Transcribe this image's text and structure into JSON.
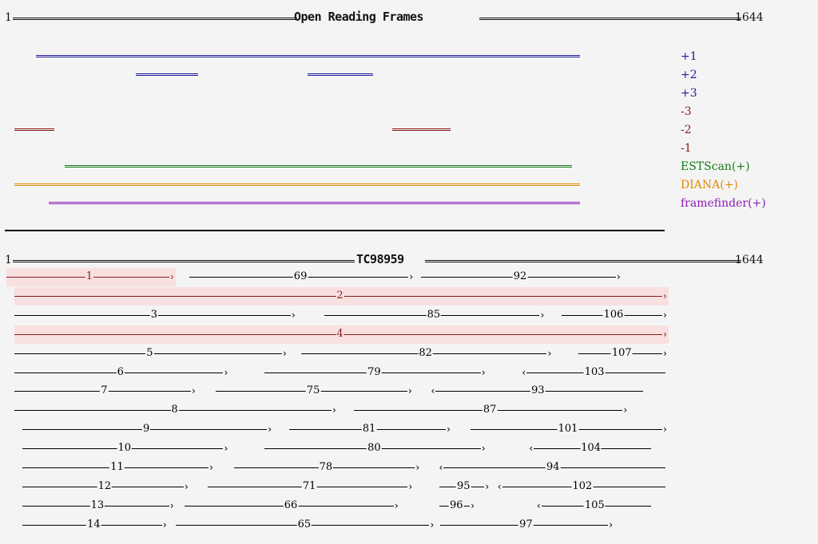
{
  "orf_header": {
    "start": "1",
    "title": "Open Reading Frames",
    "end": "1644"
  },
  "legend": [
    {
      "label": "+1",
      "color": "#1a1a9c"
    },
    {
      "label": "+2",
      "color": "#1a1a9c"
    },
    {
      "label": "+3",
      "color": "#1a1a9c"
    },
    {
      "label": "-3",
      "color": "#8b1a1a"
    },
    {
      "label": "-2",
      "color": "#8b1a1a"
    },
    {
      "label": "-1",
      "color": "#8b1a1a"
    },
    {
      "label": "ESTScan(+)",
      "color": "#137a13"
    },
    {
      "label": "DIANA(+)",
      "color": "#e08a00"
    },
    {
      "label": "framefinder(+)",
      "color": "#8a1ab5"
    }
  ],
  "orfs": [
    {
      "track": "+1",
      "start": 74,
      "end": 1430
    },
    {
      "track": "+2",
      "start": 322,
      "end": 478
    },
    {
      "track": "+2",
      "start": 751,
      "end": 914
    },
    {
      "track": "-2",
      "start": 20,
      "end": 119
    },
    {
      "track": "-2",
      "start": 962,
      "end": 1108
    },
    {
      "track": "ESTScan(+)",
      "start": 146,
      "end": 1410
    },
    {
      "track": "DIANA(+)",
      "start": 20,
      "end": 1430
    },
    {
      "track": "framefinder(+)",
      "start": 106,
      "end": 1430
    }
  ],
  "tc_header": {
    "start": "1",
    "title": "TC98959",
    "end": "1644"
  },
  "alignments": [
    {
      "label": "1",
      "start": 0,
      "end": 414,
      "dir": "fwd",
      "highlight": true
    },
    {
      "label": "69",
      "start": 456,
      "end": 1011,
      "dir": "fwd"
    },
    {
      "label": "92",
      "start": 1035,
      "end": 1528,
      "dir": "fwd"
    },
    {
      "label": "2",
      "start": 20,
      "end": 1644,
      "dir": "fwd",
      "highlight": true
    },
    {
      "label": "3",
      "start": 20,
      "end": 717,
      "dir": "fwd"
    },
    {
      "label": "85",
      "start": 794,
      "end": 1338,
      "dir": "fwd"
    },
    {
      "label": "106",
      "start": 1385,
      "end": 1644,
      "dir": "fwd"
    },
    {
      "label": "4",
      "start": 20,
      "end": 1644,
      "dir": "fwd",
      "highlight": true
    },
    {
      "label": "5",
      "start": 20,
      "end": 695,
      "dir": "fwd"
    },
    {
      "label": "82",
      "start": 735,
      "end": 1356,
      "dir": "fwd"
    },
    {
      "label": "107",
      "start": 1426,
      "end": 1644,
      "dir": "fwd"
    },
    {
      "label": "6",
      "start": 20,
      "end": 549,
      "dir": "fwd"
    },
    {
      "label": "79",
      "start": 644,
      "end": 1191,
      "dir": "fwd"
    },
    {
      "label": "103",
      "start": 1290,
      "end": 1644,
      "dir": "rev"
    },
    {
      "label": "7",
      "start": 20,
      "end": 468,
      "dir": "fwd"
    },
    {
      "label": "75",
      "start": 523,
      "end": 1008,
      "dir": "fwd"
    },
    {
      "label": "93",
      "start": 1063,
      "end": 1589,
      "dir": "rev"
    },
    {
      "label": "8",
      "start": 20,
      "end": 819,
      "dir": "fwd"
    },
    {
      "label": "87",
      "start": 867,
      "end": 1545,
      "dir": "fwd"
    },
    {
      "label": "9",
      "start": 40,
      "end": 658,
      "dir": "fwd"
    },
    {
      "label": "81",
      "start": 706,
      "end": 1104,
      "dir": "fwd"
    },
    {
      "label": "101",
      "start": 1158,
      "end": 1644,
      "dir": "fwd"
    },
    {
      "label": "10",
      "start": 40,
      "end": 549,
      "dir": "fwd"
    },
    {
      "label": "80",
      "start": 644,
      "end": 1191,
      "dir": "fwd"
    },
    {
      "label": "104",
      "start": 1308,
      "end": 1608,
      "dir": "rev"
    },
    {
      "label": "11",
      "start": 40,
      "end": 512,
      "dir": "fwd"
    },
    {
      "label": "78",
      "start": 567,
      "end": 1027,
      "dir": "fwd"
    },
    {
      "label": "94",
      "start": 1083,
      "end": 1644,
      "dir": "rev"
    },
    {
      "label": "12",
      "start": 40,
      "end": 450,
      "dir": "fwd"
    },
    {
      "label": "71",
      "start": 502,
      "end": 1009,
      "dir": "fwd"
    },
    {
      "label": "95",
      "start": 1081,
      "end": 1200,
      "dir": "fwd"
    },
    {
      "label": "102",
      "start": 1229,
      "end": 1644,
      "dir": "rev"
    },
    {
      "label": "13",
      "start": 40,
      "end": 414,
      "dir": "fwd"
    },
    {
      "label": "66",
      "start": 445,
      "end": 974,
      "dir": "fwd"
    },
    {
      "label": "96",
      "start": 1081,
      "end": 1164,
      "dir": "fwd"
    },
    {
      "label": "105",
      "start": 1327,
      "end": 1608,
      "dir": "rev"
    },
    {
      "label": "14",
      "start": 40,
      "end": 396,
      "dir": "fwd"
    },
    {
      "label": "65",
      "start": 423,
      "end": 1063,
      "dir": "fwd"
    },
    {
      "label": "97",
      "start": 1083,
      "end": 1509,
      "dir": "fwd"
    }
  ]
}
